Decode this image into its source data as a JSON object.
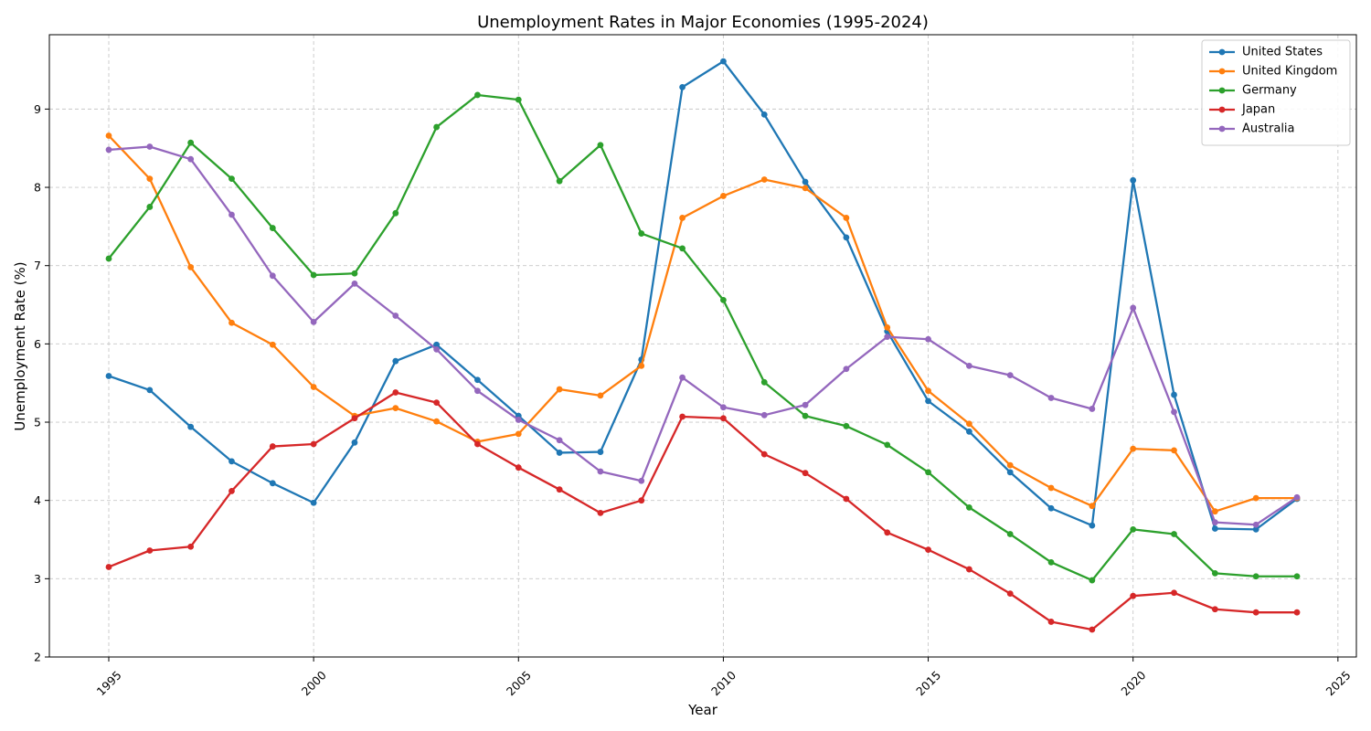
{
  "chart_data": {
    "type": "line",
    "title": "Unemployment Rates in Major Economies (1995-2024)",
    "xlabel": "Year",
    "ylabel": "Unemployment Rate (%)",
    "xlim": [
      1993.55,
      2025.45
    ],
    "ylim": [
      2.0,
      9.95
    ],
    "x_ticks": [
      1995,
      2000,
      2005,
      2010,
      2015,
      2020,
      2025
    ],
    "y_ticks": [
      2,
      3,
      4,
      5,
      6,
      7,
      8,
      9
    ],
    "grid": true,
    "legend_position": "top-right",
    "x": [
      1995,
      1996,
      1997,
      1998,
      1999,
      2000,
      2001,
      2002,
      2003,
      2004,
      2005,
      2006,
      2007,
      2008,
      2009,
      2010,
      2011,
      2012,
      2013,
      2014,
      2015,
      2016,
      2017,
      2018,
      2019,
      2020,
      2021,
      2022,
      2023,
      2024
    ],
    "series": [
      {
        "name": "United States",
        "color": "#1f77b4",
        "values": [
          5.59,
          5.41,
          4.94,
          4.5,
          4.22,
          3.97,
          4.74,
          5.78,
          5.99,
          5.54,
          5.08,
          4.61,
          4.62,
          5.8,
          9.28,
          9.61,
          8.93,
          8.07,
          7.36,
          6.16,
          5.27,
          4.88,
          4.36,
          3.9,
          3.68,
          8.09,
          5.35,
          3.64,
          3.63,
          4.02
        ]
      },
      {
        "name": "United Kingdom",
        "color": "#ff7f0e",
        "values": [
          8.66,
          8.11,
          6.98,
          6.27,
          5.99,
          5.45,
          5.08,
          5.18,
          5.01,
          4.75,
          4.85,
          5.42,
          5.34,
          5.72,
          7.61,
          7.89,
          8.1,
          7.99,
          7.61,
          6.21,
          5.4,
          4.98,
          4.45,
          4.16,
          3.93,
          4.66,
          4.64,
          3.86,
          4.03,
          4.03
        ]
      },
      {
        "name": "Germany",
        "color": "#2ca02c",
        "values": [
          7.09,
          7.75,
          8.57,
          8.11,
          7.48,
          6.88,
          6.9,
          7.67,
          8.77,
          9.18,
          9.12,
          8.08,
          8.54,
          7.41,
          7.22,
          6.56,
          5.51,
          5.08,
          4.95,
          4.71,
          4.36,
          3.91,
          3.57,
          3.21,
          2.98,
          3.63,
          3.57,
          3.07,
          3.03,
          3.03
        ]
      },
      {
        "name": "Japan",
        "color": "#d62728",
        "values": [
          3.15,
          3.36,
          3.41,
          4.12,
          4.69,
          4.72,
          5.05,
          5.38,
          5.25,
          4.72,
          4.42,
          4.14,
          3.84,
          4.0,
          5.07,
          5.05,
          4.59,
          4.35,
          4.02,
          3.59,
          3.37,
          3.12,
          2.81,
          2.45,
          2.35,
          2.78,
          2.82,
          2.61,
          2.57,
          2.57
        ]
      },
      {
        "name": "Australia",
        "color": "#9467bd",
        "values": [
          8.48,
          8.52,
          8.36,
          7.65,
          6.87,
          6.28,
          6.77,
          6.36,
          5.93,
          5.4,
          5.03,
          4.77,
          4.37,
          4.25,
          5.57,
          5.19,
          5.09,
          5.22,
          5.68,
          6.09,
          6.06,
          5.72,
          5.6,
          5.31,
          5.17,
          6.46,
          5.13,
          3.72,
          3.69,
          4.04
        ]
      }
    ]
  }
}
